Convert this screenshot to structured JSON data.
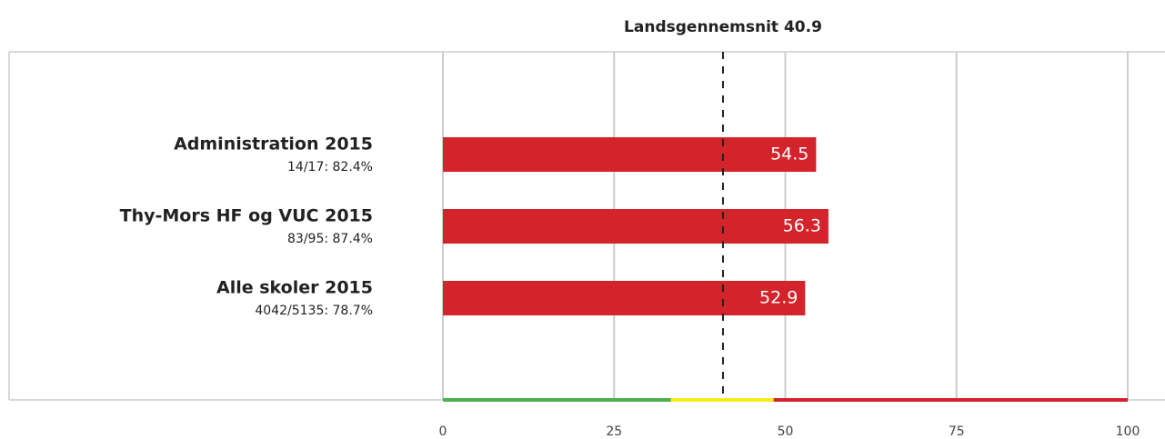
{
  "chart_data": {
    "type": "bar",
    "orientation": "horizontal",
    "title": "Landsgennemsnit 40.9",
    "reference_line": 40.9,
    "categories": [
      "Administration 2015",
      "Thy-Mors HF og VUC 2015",
      "Alle skoler 2015"
    ],
    "sublabels": [
      "14/17: 82.4%",
      "83/95: 87.4%",
      "4042/5135: 78.7%"
    ],
    "values": [
      54.5,
      56.3,
      52.9
    ],
    "color": "#d3232b",
    "xlim": [
      0,
      100
    ],
    "xticks": [
      0,
      25,
      50,
      75,
      100
    ],
    "grid": true,
    "bands": [
      {
        "from": 0,
        "to": 33.3,
        "color": "#4caf50"
      },
      {
        "from": 33.3,
        "to": 48.3,
        "color": "#f5eb1a"
      },
      {
        "from": 48.3,
        "to": 100,
        "color": "#d3232b"
      }
    ]
  }
}
